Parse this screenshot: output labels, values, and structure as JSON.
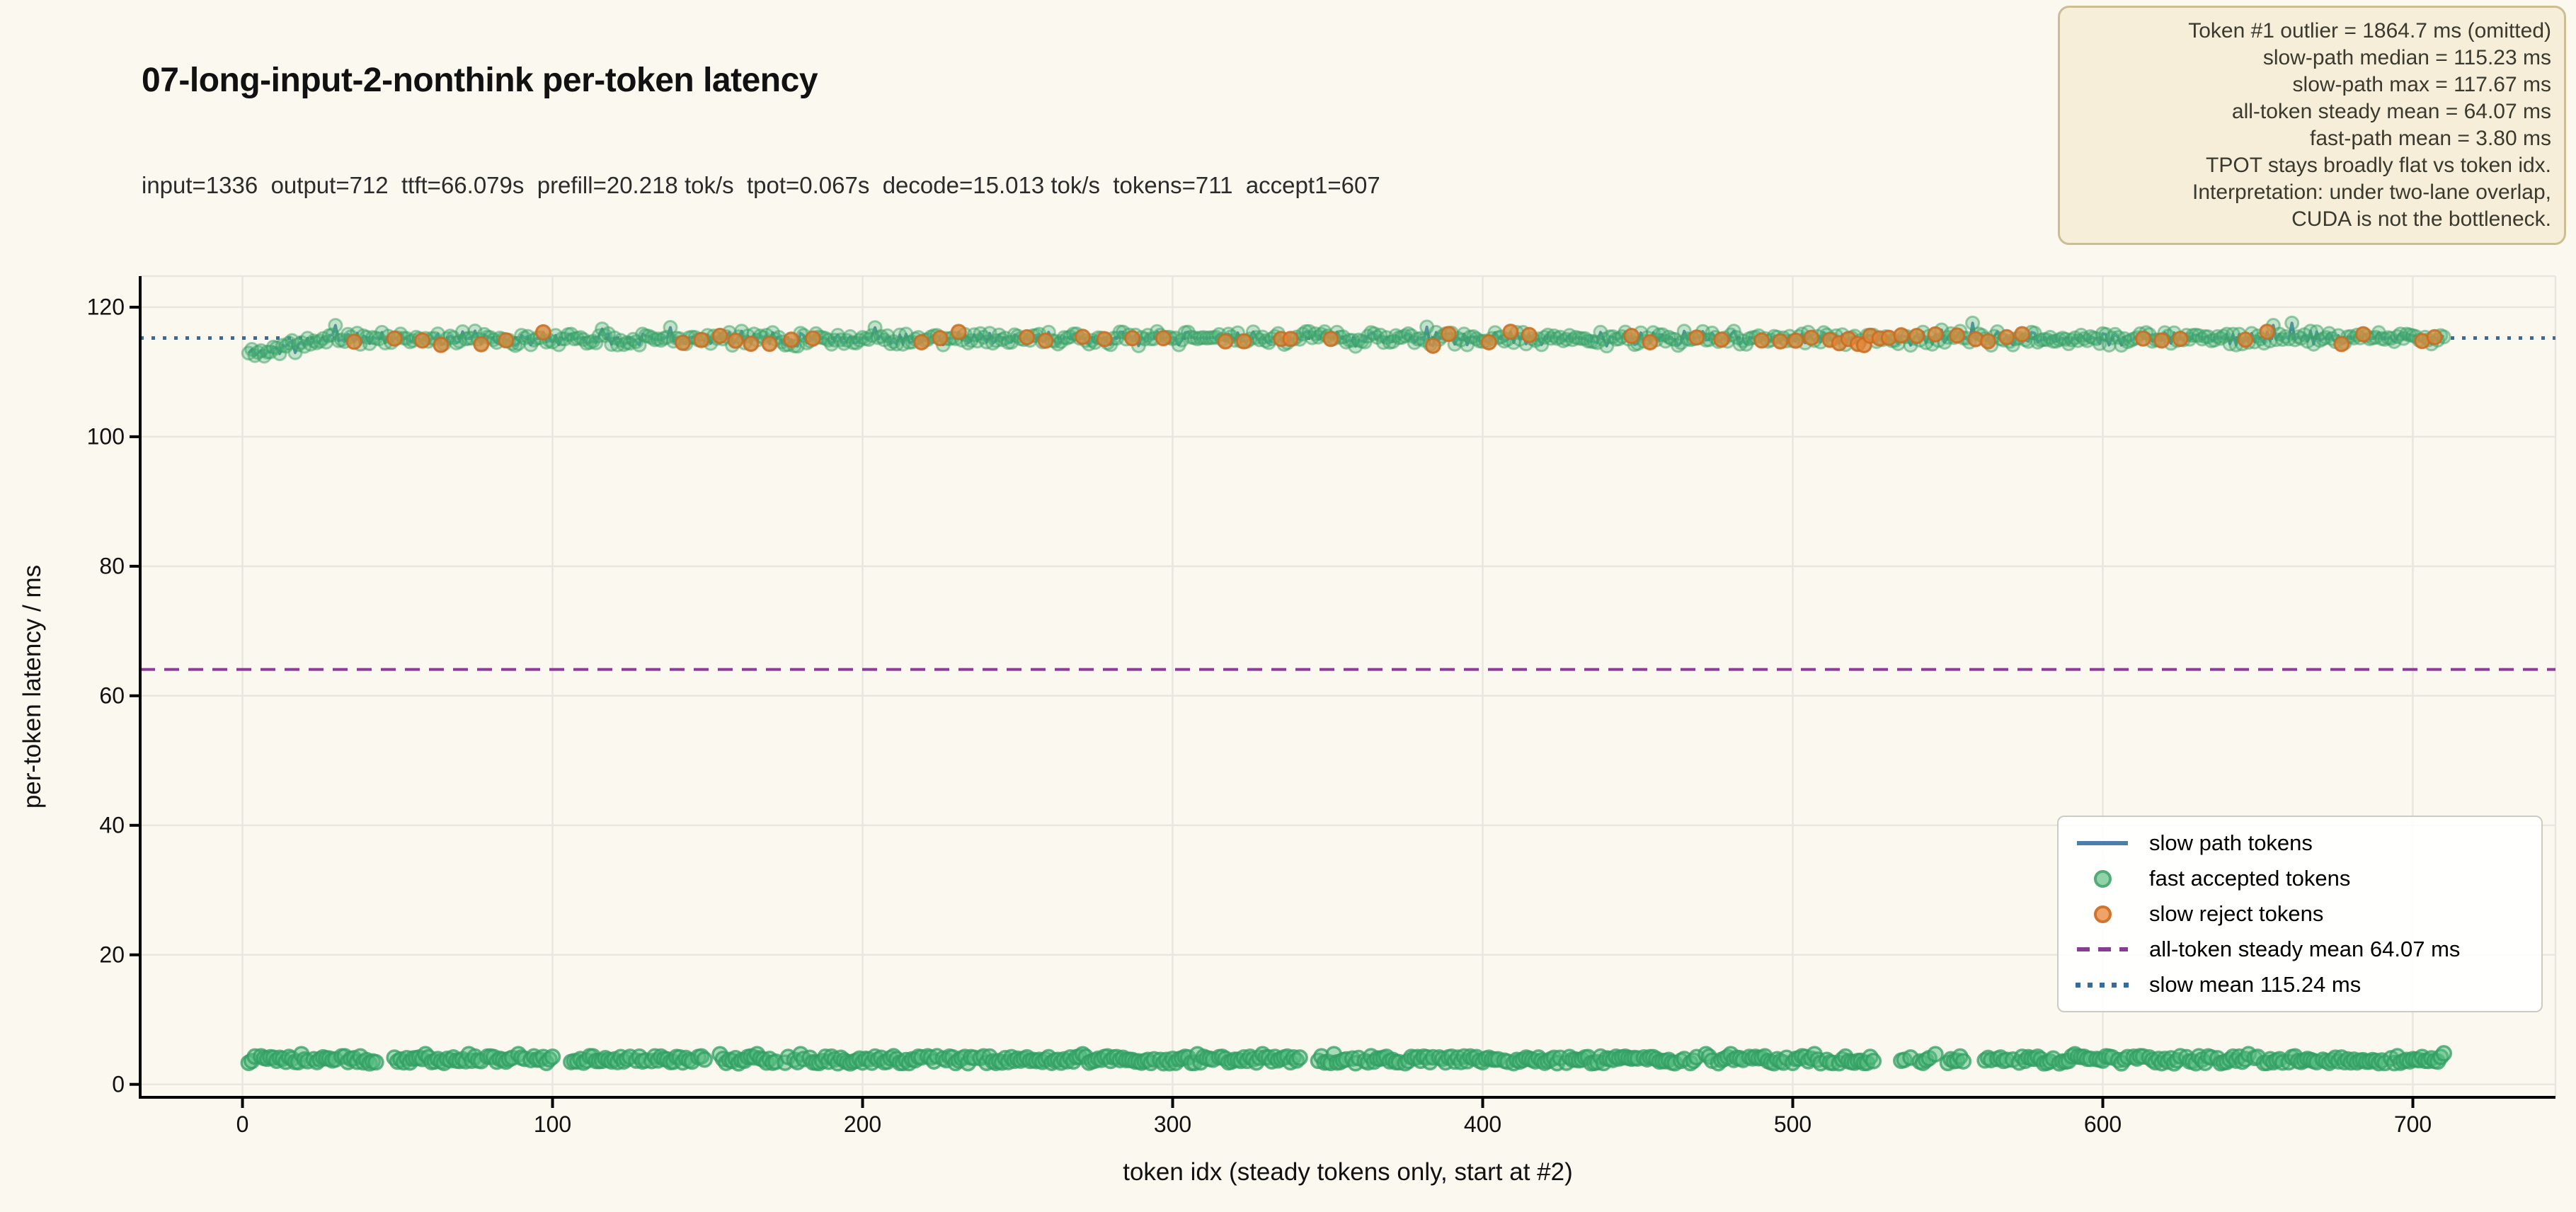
{
  "page": {
    "background": "#faf8ef"
  },
  "header": {
    "title": "07-long-input-2-nonthink per-token latency",
    "subtitle": "input=1336  output=712  ttft=66.079s  prefill=20.218 tok/s  tpot=0.067s  decode=15.013 tok/s  tokens=711  accept1=607"
  },
  "annotation": {
    "bg": "#f6eed8",
    "border": "#ccbd92",
    "text_color": "#3a392f",
    "lines": [
      "Token #1 outlier = 1864.7 ms (omitted)",
      "slow-path median = 115.23 ms",
      "slow-path max = 117.67 ms",
      "all-token steady mean = 64.07 ms",
      "fast-path mean = 3.80 ms",
      "TPOT stays broadly flat vs token idx.",
      "Interpretation: under two-lane overlap,",
      "CUDA is not the bottleneck."
    ]
  },
  "chart_data": {
    "type": "line+scatter",
    "title": "07-long-input-2-nonthink per-token latency",
    "xlabel": "token idx (steady tokens only, start at #2)",
    "ylabel": "per-token latency / ms",
    "xlim": [
      -33,
      746
    ],
    "ylim": [
      -2,
      124.8
    ],
    "xticks": [
      0,
      100,
      200,
      300,
      400,
      500,
      600,
      700
    ],
    "yticks": [
      0,
      20,
      40,
      60,
      80,
      100,
      120
    ],
    "grid": true,
    "grid_color": "#e8e6de",
    "background": "#faf8ef",
    "stats": {
      "token1_outlier_ms": 1864.7,
      "slow_path_median_ms": 115.23,
      "slow_path_max_ms": 117.67,
      "all_token_steady_mean_ms": 64.07,
      "fast_path_mean_ms": 3.8,
      "slow_mean_ms": 115.24,
      "tokens": 711,
      "accept1": 607
    },
    "series": [
      {
        "name": "slow path tokens",
        "kind": "line",
        "color": "#4177a6",
        "x_start": 2,
        "x_end": 710,
        "steady_value": 115.18,
        "ramp_start_value": 112.85,
        "ramp_end_x": 30,
        "noise_amp": 1.25,
        "spike_rate": 0.015,
        "max": 117.55,
        "min": 112.4,
        "seed": 11,
        "marker_color": "#4bbb7a"
      },
      {
        "name": "fast accepted tokens",
        "kind": "scatter",
        "color": "#4bbb7a",
        "y_mean": 3.8,
        "jitter": 0.55,
        "bump_rate": 0.02,
        "bump_value": 4.65,
        "x_start": 2,
        "x_end": 710,
        "gaps": [
          [
            44,
            48
          ],
          [
            101,
            105
          ],
          [
            150,
            153
          ],
          [
            342,
            346
          ],
          [
            527,
            534
          ],
          [
            556,
            561
          ]
        ],
        "sparse": [
          535,
          550
        ],
        "skip_rate": 0.05,
        "seed": 23
      },
      {
        "name": "slow reject tokens",
        "kind": "scatter-on-line",
        "color": "#e7853a",
        "x": [
          36,
          49,
          58,
          64,
          77,
          85,
          97,
          142,
          148,
          154,
          159,
          164,
          170,
          177,
          184,
          219,
          225,
          231,
          253,
          259,
          271,
          278,
          287,
          297,
          317,
          323,
          335,
          338,
          351,
          384,
          389,
          402,
          409,
          415,
          448,
          454,
          469,
          477,
          490,
          496,
          501,
          506,
          512,
          515,
          518,
          521,
          523,
          525,
          528,
          531,
          535,
          540,
          546,
          553,
          559,
          563,
          569,
          574,
          613,
          619,
          625,
          646,
          653,
          677,
          684,
          703,
          707
        ]
      },
      {
        "name": "all-token steady mean 64.07 ms",
        "kind": "hline",
        "y": 64.07,
        "color": "#8a3b96",
        "dash": "dashed"
      },
      {
        "name": "slow mean 115.24 ms",
        "kind": "hline",
        "y": 115.24,
        "color": "#3a6b96",
        "dash": "dotted"
      }
    ],
    "legend": {
      "position": "lower right",
      "entries": [
        {
          "label": "slow path tokens",
          "kind": "line",
          "color": "#4d7ea8"
        },
        {
          "label": "fast accepted tokens",
          "kind": "dot",
          "fill": "#8fd4a8",
          "edge": "#53ab78"
        },
        {
          "label": "slow reject tokens",
          "kind": "dot",
          "fill": "#f0a368",
          "edge": "#d0752f"
        },
        {
          "label": "all-token steady mean 64.07 ms",
          "kind": "dashed",
          "color": "#8a3b96"
        },
        {
          "label": "slow mean 115.24 ms",
          "kind": "dotted",
          "color": "#3a6b96"
        }
      ]
    }
  }
}
